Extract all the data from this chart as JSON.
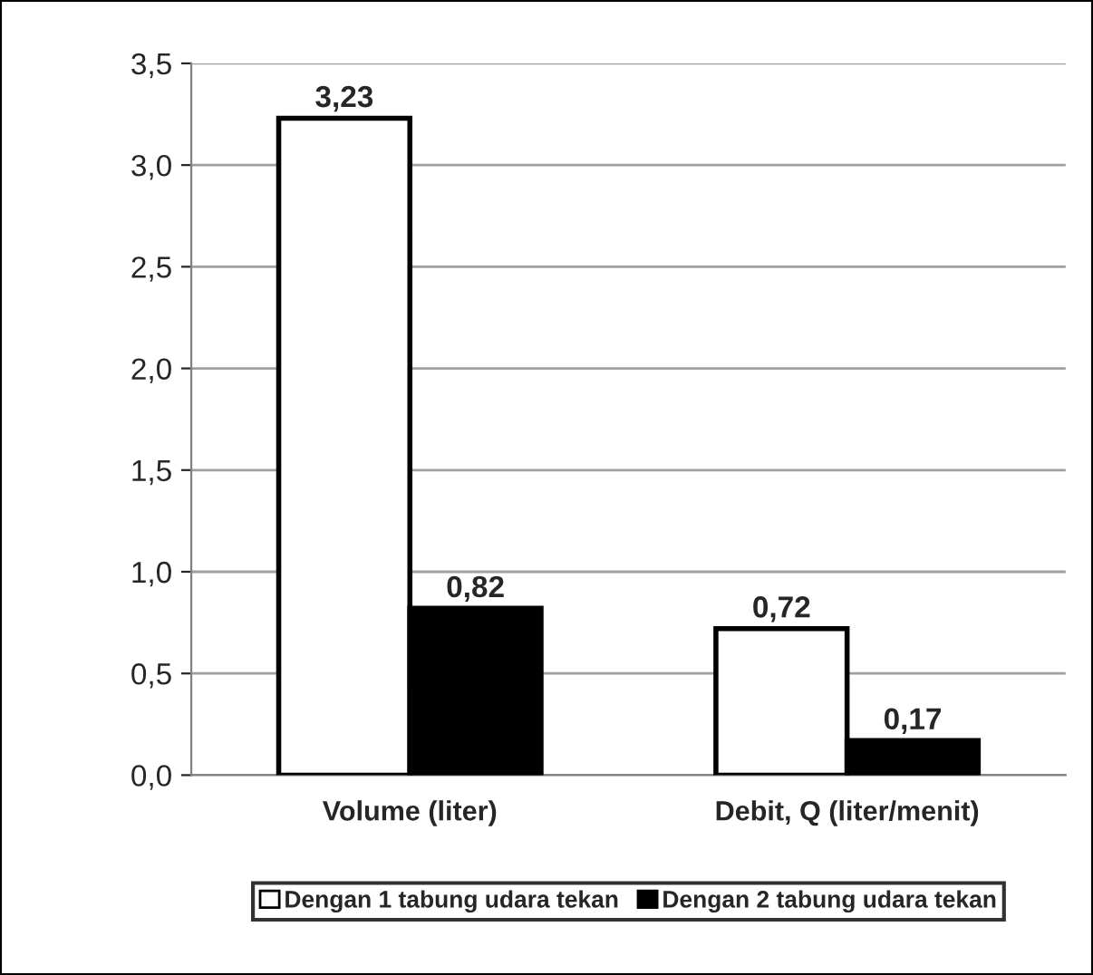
{
  "chart_data": {
    "type": "bar",
    "categories": [
      "Volume (liter)",
      "Debit, Q (liter/menit)"
    ],
    "series": [
      {
        "name": "Dengan 1 tabung udara tekan",
        "color": "#ffffff",
        "values": [
          3.23,
          0.72
        ],
        "value_labels": [
          "3,23",
          "0,72"
        ]
      },
      {
        "name": "Dengan 2 tabung udara tekan",
        "color": "#000000",
        "values": [
          0.82,
          0.17
        ],
        "value_labels": [
          "0,82",
          "0,17"
        ]
      }
    ],
    "ylim": [
      0,
      3.5
    ],
    "yticks": [
      {
        "value": 0,
        "label": "0,0"
      },
      {
        "value": 0.5,
        "label": "0,5"
      },
      {
        "value": 1.0,
        "label": "1,0"
      },
      {
        "value": 1.5,
        "label": "1,5"
      },
      {
        "value": 2.0,
        "label": "2,0"
      },
      {
        "value": 2.5,
        "label": "2,5"
      },
      {
        "value": 3.0,
        "label": "3,0"
      },
      {
        "value": 3.5,
        "label": "3,5"
      }
    ],
    "grid": "y",
    "legend": "bottom"
  }
}
